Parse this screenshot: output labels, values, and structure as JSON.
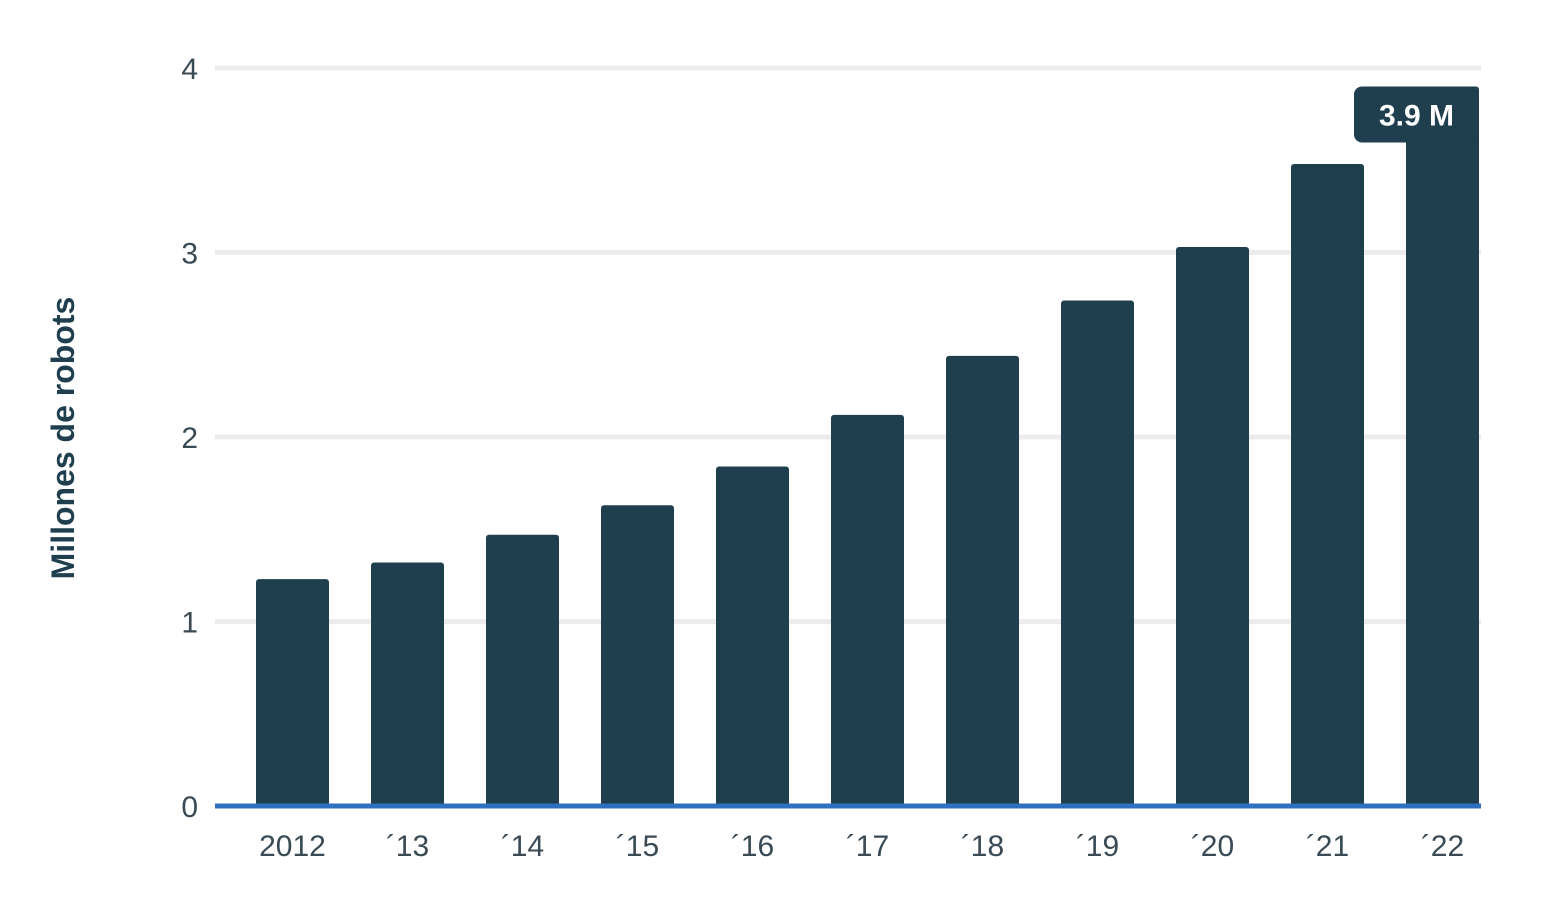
{
  "chart_data": {
    "type": "bar",
    "title": "",
    "xlabel": "",
    "ylabel": "Millones de robots",
    "categories": [
      "2012",
      "´13",
      "´14",
      "´15",
      "´16",
      "´17",
      "´18",
      "´19",
      "´20",
      "´21",
      "´22"
    ],
    "values": [
      1.23,
      1.32,
      1.47,
      1.63,
      1.84,
      2.12,
      2.44,
      2.74,
      3.03,
      3.48,
      3.9
    ],
    "ylim": [
      0,
      4
    ],
    "yticks": [
      "0",
      "1",
      "2",
      "3",
      "4"
    ],
    "grid": true,
    "legend": "none",
    "annotation": {
      "category": "´22",
      "text": "3.9 M"
    },
    "colors": {
      "bar": "#1f3f4f",
      "grid": "#ececec",
      "baseline": "#2f6fbf",
      "tick_text": "#3a4a55",
      "annotation_bg": "#1f3f4f",
      "annotation_text": "#ffffff"
    }
  }
}
